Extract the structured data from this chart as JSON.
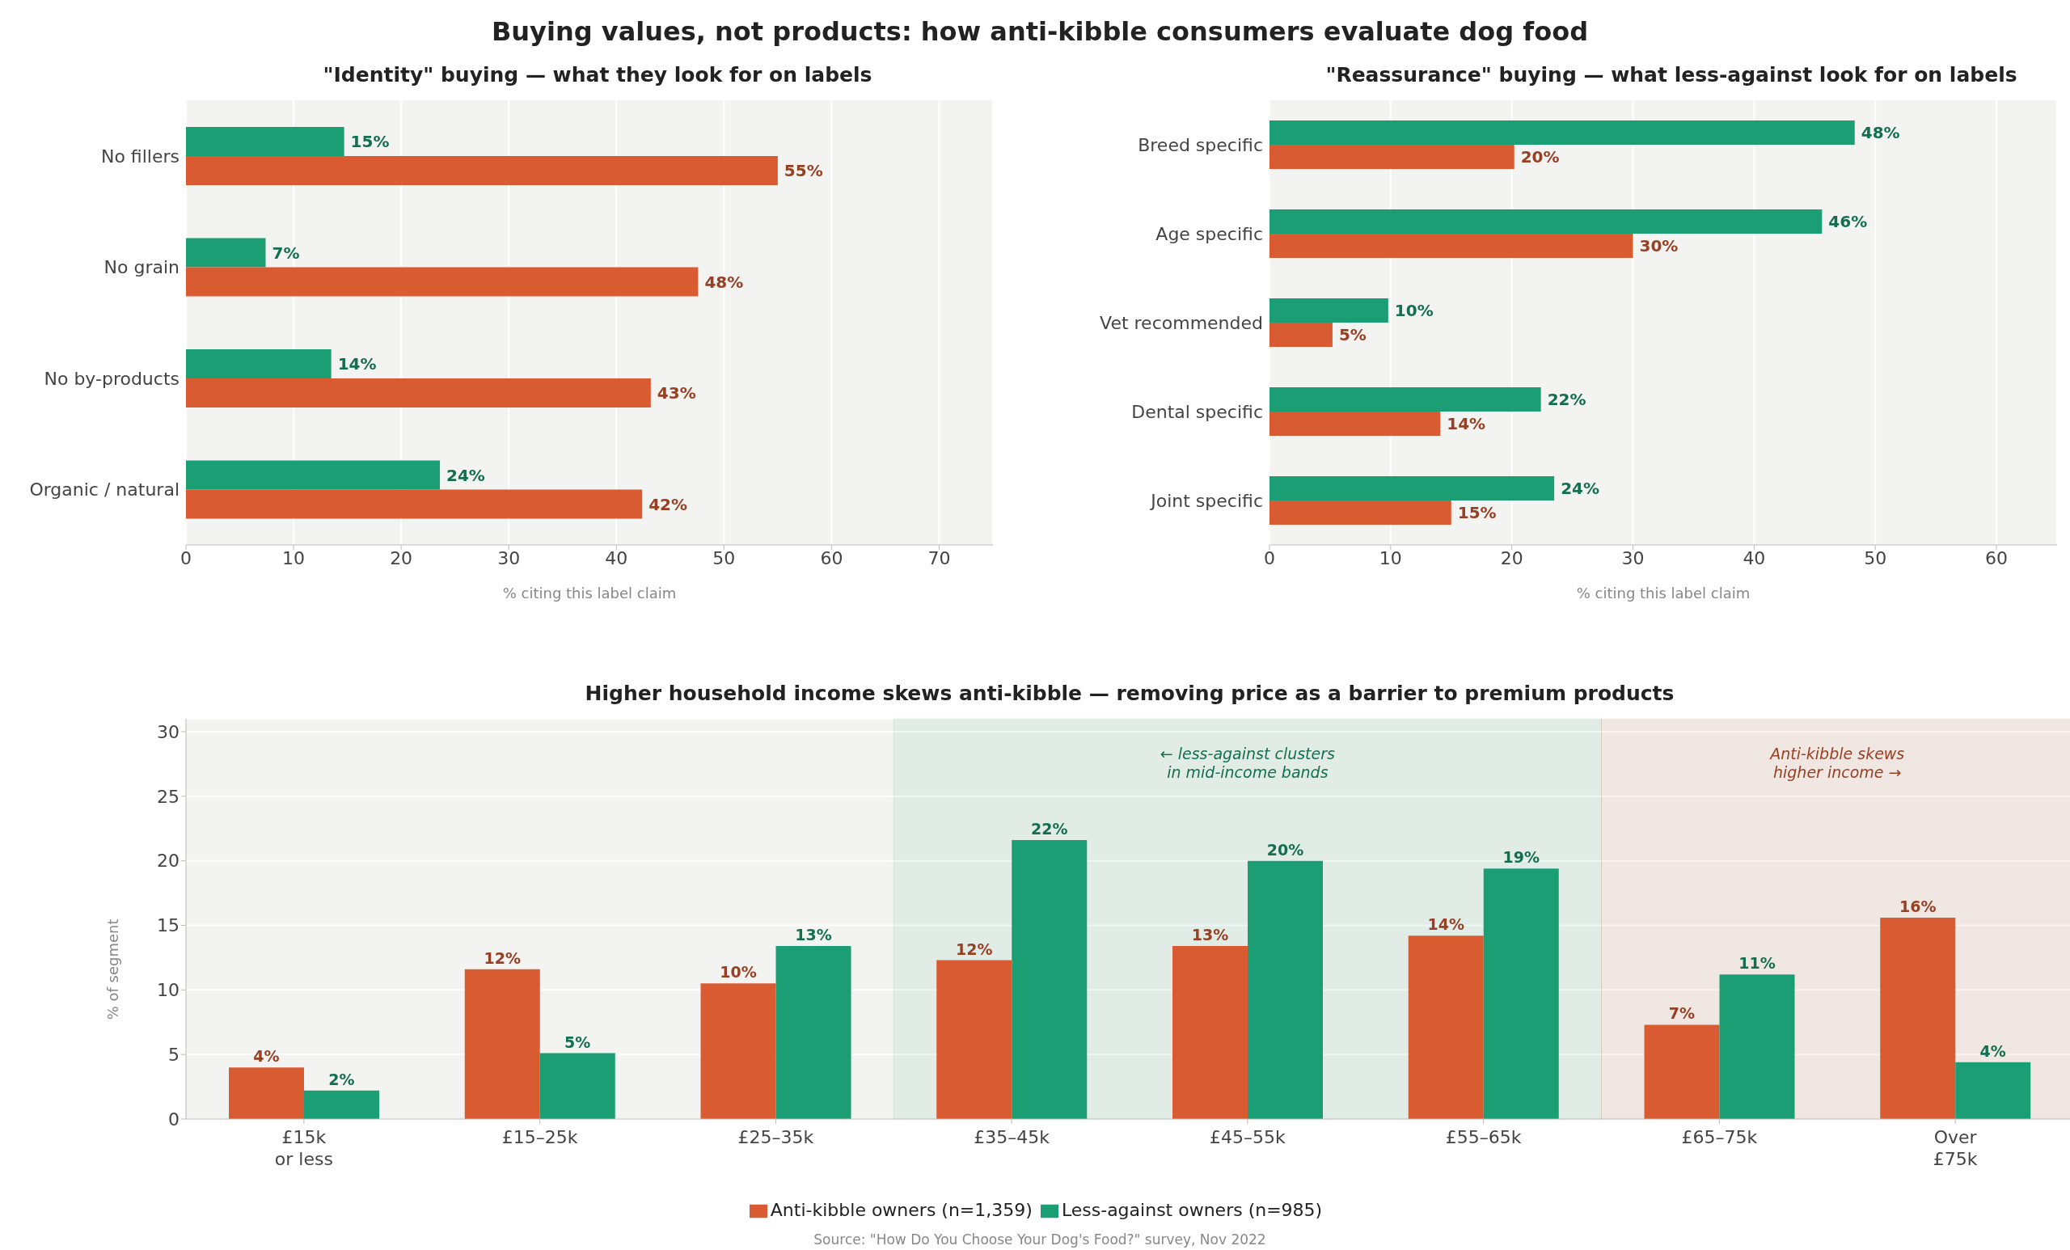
{
  "chart_data": [
    {
      "type": "bar",
      "title": "Buying values, not products: how anti-kibble consumers evaluate dog food",
      "subtitle": "\"Identity\" buying — what they look for on labels",
      "orientation": "horizontal",
      "categories": [
        "No fillers",
        "No grain",
        "No by-products",
        "Organic / natural"
      ],
      "series": [
        {
          "color": "#1c9e74",
          "values": [
            14.7,
            7.4,
            13.5,
            23.6
          ],
          "value_labels": [
            "15%",
            "7%",
            "14%",
            "24%"
          ]
        },
        {
          "color": "#d95b32",
          "values": [
            55,
            47.6,
            43.2,
            42.4
          ],
          "value_labels": [
            "55%",
            "48%",
            "43%",
            "42%"
          ]
        }
      ],
      "xlim": [
        0,
        75
      ],
      "xticks": [
        0,
        10,
        20,
        30,
        40,
        50,
        60,
        70
      ],
      "xlabel": "% citing this label claim",
      "grid": "x",
      "legend": false
    },
    {
      "type": "bar",
      "subtitle": "\"Reassurance\" buying — what less-against look for on labels",
      "orientation": "horizontal",
      "categories": [
        "Breed specific",
        "Age specific",
        "Vet recommended",
        "Dental specific",
        "Joint specific"
      ],
      "series": [
        {
          "color": "#1c9e74",
          "values": [
            48.3,
            45.6,
            9.8,
            22.4,
            23.5
          ],
          "value_labels": [
            "48%",
            "46%",
            "10%",
            "22%",
            "24%"
          ]
        },
        {
          "color": "#d95b32",
          "values": [
            20.2,
            30,
            5.2,
            14.1,
            15
          ],
          "value_labels": [
            "20%",
            "30%",
            "5%",
            "14%",
            "15%"
          ]
        }
      ],
      "xlim": [
        0,
        65
      ],
      "xticks": [
        0,
        10,
        20,
        30,
        40,
        50,
        60
      ],
      "xlabel": "% citing this label claim",
      "grid": "x",
      "legend": false
    },
    {
      "type": "bar",
      "subtitle": "Higher household income skews anti-kibble — removing price as a barrier to premium products",
      "categories": [
        "£15k\nor less",
        "£15–25k",
        "£25–35k",
        "£35–45k",
        "£45–55k",
        "£55–65k",
        "£65–75k",
        "Over\n£75k"
      ],
      "series": [
        {
          "name": "Anti-kibble owners (n=1,359)",
          "color": "#d95b32",
          "values": [
            4,
            11.6,
            10.5,
            12.3,
            13.4,
            14.2,
            7.3,
            15.6
          ],
          "value_labels": [
            "4%",
            "12%",
            "10%",
            "12%",
            "13%",
            "14%",
            "7%",
            "16%"
          ]
        },
        {
          "name": "Less-against owners (n=985)",
          "color": "#1c9e74",
          "values": [
            2.2,
            5.1,
            13.4,
            21.6,
            20,
            19.4,
            11.2,
            4.4
          ],
          "value_labels": [
            "2%",
            "5%",
            "13%",
            "22%",
            "20%",
            "19%",
            "11%",
            "4%"
          ]
        }
      ],
      "ylim": [
        0,
        31
      ],
      "yticks": [
        0,
        5,
        10,
        15,
        20,
        25,
        30
      ],
      "ylabel": "% of segment",
      "grid": "y",
      "legend": "bottom",
      "bands": [
        {
          "axis": "x",
          "from": "£35–45k",
          "to": "£55–65k",
          "label": "← less-against clusters\nin mid-income bands",
          "color": "#1c9e74"
        },
        {
          "axis": "x",
          "from": "£65–75k",
          "to": "Over\n£75k",
          "label": "Anti-kibble skews\nhigher income →",
          "color": "#d95b32"
        }
      ],
      "annotations": [
        "Source: \"How Do You Choose Your Dog's Food?\" survey, Nov 2022"
      ]
    }
  ]
}
